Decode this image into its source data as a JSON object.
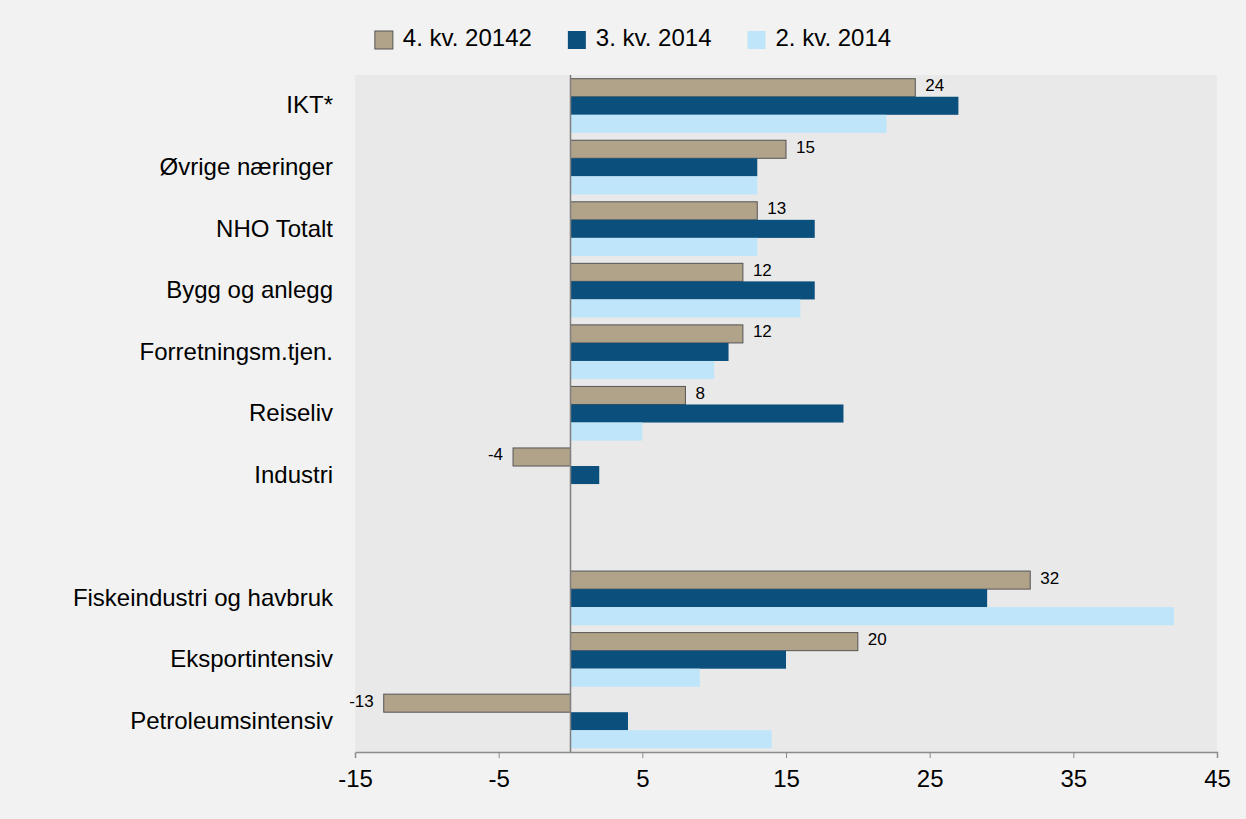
{
  "chart_data": {
    "type": "bar",
    "orientation": "horizontal",
    "categories": [
      "IKT*",
      "Øvrige næringer",
      "NHO Totalt",
      "Bygg og anlegg",
      "Forretningsm.tjen.",
      "Reiseliv",
      "Industri",
      null,
      "Fiskeindustri og havbruk",
      "Eksportintensiv",
      "Petroleumsintensiv"
    ],
    "series": [
      {
        "name": "4. kv. 20142",
        "color": "#b1a28a",
        "data_labels": true,
        "values": [
          24,
          15,
          13,
          12,
          12,
          8,
          -4,
          null,
          32,
          20,
          -13
        ]
      },
      {
        "name": "3. kv. 2014",
        "color": "#0b4f7c",
        "values": [
          27,
          13,
          17,
          17,
          11,
          19,
          2,
          null,
          29,
          15,
          4
        ]
      },
      {
        "name": "2. kv. 2014",
        "color": "#bee5fa",
        "values": [
          22,
          13,
          13,
          16,
          10,
          5,
          0,
          null,
          42,
          9,
          14
        ]
      }
    ],
    "xlim": [
      -15,
      45
    ],
    "xticks": [
      -15,
      -5,
      5,
      15,
      25,
      35,
      45
    ],
    "grid": false,
    "legend": "top"
  }
}
